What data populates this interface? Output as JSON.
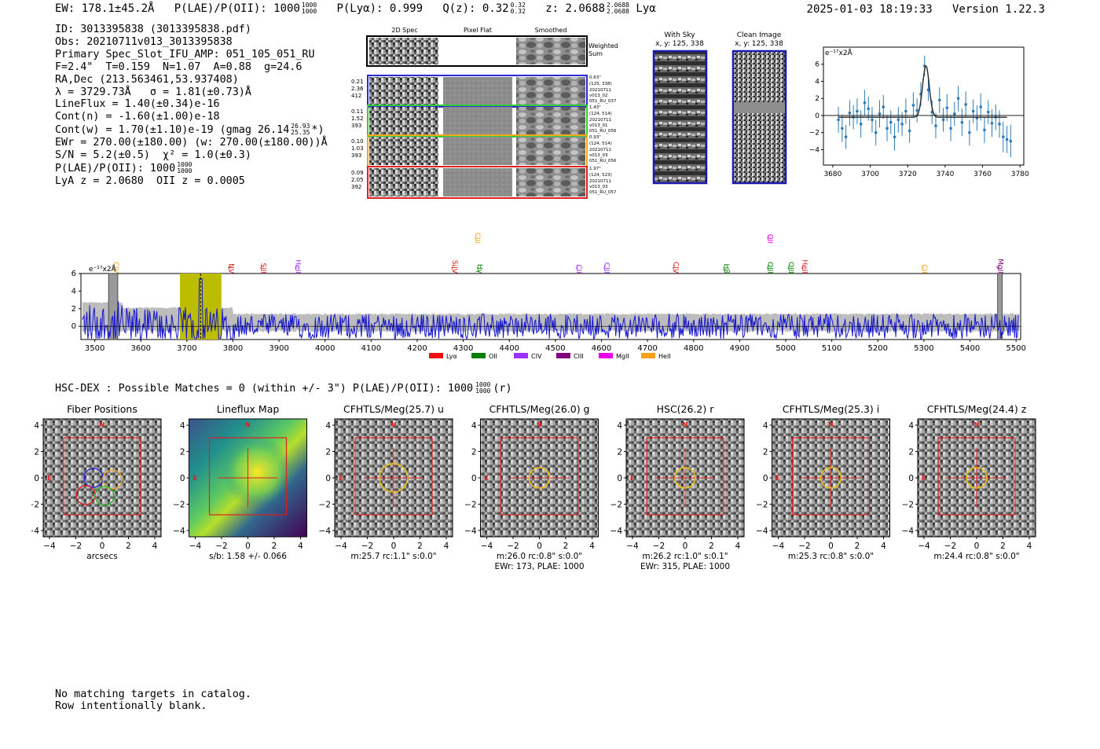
{
  "header": {
    "ew": "EW: 178.1±45.2Å",
    "plae": "P(LAE)/P(OII): 1000",
    "plae_sup": "1000",
    "plae_sub": "1000",
    "plya": "P(Lyα): 0.999",
    "qz": "Q(z): 0.32",
    "qz_sup": "0.32",
    "qz_sub": "0.32",
    "z": "z: 2.0688",
    "z_sup": "2.0688",
    "z_sub": "2.0688",
    "line_name": "Lyα",
    "timestamp": "2025-01-03 18:19:33",
    "version": "Version 1.22.3"
  },
  "info": {
    "id": "ID: 3013395838 (3013395838.pdf)",
    "obs": "Obs: 20210711v013_3013395838",
    "primary": "Primary Spec_Slot_IFU_AMP: 051_105_051_RU",
    "fibers": "F=2.4\"  T=0.159  N=1.07  A=0.88  g=24.6",
    "radec": "RA,Dec (213.563461,53.937408)",
    "lambda": "λ = 3729.73Å   σ = 1.81(±0.73)Å",
    "lineflux": "LineFlux = 1.40(±0.34)e-16",
    "cont_n": "Cont(n) = -1.60(±1.00)e-18",
    "cont_w": "Cont(w) = 1.70(±1.10)e-19 (gmag 26.14",
    "cont_w_sup": "26.93",
    "cont_w_sub": "25.35",
    "cont_w_end": "*)",
    "ewr": "EWr = 270.00(±180.00) (w: 270.00(±180.00))Å",
    "sn": "S/N = 5.2(±0.5)  χ² = 1.0(±0.3)",
    "plae": "P(LAE)/P(OII): 1000",
    "plae_sup": "1000",
    "plae_sub": "1000",
    "lya": "LyA z = 2.0680  OII z = 0.0005"
  },
  "cutouts": {
    "col_headers": [
      "2D Spec",
      "Pixel Flat",
      "Smoothed"
    ],
    "weighted_sum": [
      "Weighted",
      "Sum"
    ],
    "rows": [
      {
        "left": [
          "0.21",
          "2.36",
          "412"
        ],
        "right": [
          "0.63\"",
          "(125, 338)",
          "20210711",
          "v013_02",
          "051_RU_037"
        ],
        "color": "#2a2ad8"
      },
      {
        "left": [
          "0.11",
          "1.52",
          "393"
        ],
        "right": [
          "1.43\"",
          "(124, 514)",
          "20210711",
          "v013_01",
          "051_RU_056"
        ],
        "color": "#33cc33"
      },
      {
        "left": [
          "0.10",
          "1.03",
          "393"
        ],
        "right": [
          "0.93\"",
          "(124, 514)",
          "20210711",
          "v013_03",
          "051_RU_056"
        ],
        "color": "#f2a81d"
      },
      {
        "left": [
          "0.09",
          "2.05",
          "392"
        ],
        "right": [
          "1.97\"",
          "(124, 523)",
          "20210711",
          "v013_03",
          "051_RU_057"
        ],
        "color": "#e02020"
      }
    ]
  },
  "sky_panels": {
    "with_sky_title": "With Sky",
    "with_sky_xy": "x, y: 125, 338",
    "clean_title": "Clean Image",
    "clean_xy": "x, y: 125, 338"
  },
  "hsc_dex": {
    "text": "HSC-DEX : Possible Matches = 0 (within +/- 3\")  P(LAE)/P(OII): 1000",
    "sup": "1000",
    "sub": "1000",
    "band": "(r)"
  },
  "stamps": [
    {
      "title": "Fiber Positions",
      "caption": "arcsecs",
      "caption2": ""
    },
    {
      "title": "Lineflux Map",
      "caption": "s/b: 1.58 +/- 0.066",
      "caption2": ""
    },
    {
      "title": "CFHTLS/Meg(25.7) u",
      "caption": "m:25.7 rc:1.1\"  s:0.0\"",
      "caption2": ""
    },
    {
      "title": "CFHTLS/Meg(26.0) g",
      "caption": "m:26.0 rc:0.8\"  s:0.0\"",
      "caption2": "EWr: 173, PLAE: 1000"
    },
    {
      "title": "HSC(26.2) r",
      "caption": "m:26.2 rc:1.0\"  s:0.1\"",
      "caption2": "EWr: 315, PLAE: 1000"
    },
    {
      "title": "CFHTLS/Meg(25.3) i",
      "caption": "m:25.3 rc:0.8\"  s:0.0\"",
      "caption2": ""
    },
    {
      "title": "CFHTLS/Meg(24.4) z",
      "caption": "m:24.4 rc:0.8\"  s:0.0\"",
      "caption2": ""
    }
  ],
  "stamp_axis": {
    "ticks": [
      "−4",
      "−2",
      "0",
      "2",
      "4"
    ],
    "north": "N",
    "east": "E"
  },
  "chart_data": [
    {
      "type": "scatter",
      "title": "",
      "ylabel": "e⁻¹⁷x2Å",
      "xlabel": "",
      "xlim": [
        3675,
        3782
      ],
      "ylim": [
        -5.8,
        8
      ],
      "x_ticks": [
        3680,
        3700,
        3720,
        3740,
        3760,
        3780
      ],
      "y_ticks": [
        -4,
        -2,
        0,
        2,
        4,
        6
      ],
      "points": [
        [
          3683,
          -0.5,
          1.5
        ],
        [
          3685,
          -1.5,
          1.6
        ],
        [
          3687,
          -2.5,
          1.4
        ],
        [
          3689,
          0.3,
          1.5
        ],
        [
          3691,
          -0.2,
          1.4
        ],
        [
          3693,
          0.5,
          1.5
        ],
        [
          3695,
          -1.0,
          1.6
        ],
        [
          3697,
          1.5,
          1.5
        ],
        [
          3699,
          0.8,
          1.4
        ],
        [
          3701,
          -0.5,
          1.5
        ],
        [
          3703,
          -2.0,
          1.5
        ],
        [
          3705,
          0.2,
          1.6
        ],
        [
          3707,
          1.0,
          1.4
        ],
        [
          3709,
          -1.5,
          1.5
        ],
        [
          3711,
          -0.8,
          1.4
        ],
        [
          3713,
          -2.5,
          1.6
        ],
        [
          3715,
          -0.5,
          1.5
        ],
        [
          3717,
          -1.0,
          1.4
        ],
        [
          3719,
          0.5,
          1.5
        ],
        [
          3721,
          -1.8,
          1.4
        ],
        [
          3723,
          1.2,
          1.5
        ],
        [
          3725,
          0.6,
          1.4
        ],
        [
          3727,
          2.5,
          1.4
        ],
        [
          3729,
          5.8,
          1.2
        ],
        [
          3731,
          3.0,
          1.3
        ],
        [
          3733,
          0.4,
          1.4
        ],
        [
          3735,
          -1.2,
          1.5
        ],
        [
          3737,
          1.8,
          1.5
        ],
        [
          3739,
          -0.5,
          1.4
        ],
        [
          3741,
          0.9,
          1.6
        ],
        [
          3743,
          -1.5,
          1.5
        ],
        [
          3745,
          0.2,
          1.4
        ],
        [
          3747,
          2.0,
          1.5
        ],
        [
          3749,
          -0.8,
          1.6
        ],
        [
          3751,
          1.3,
          1.5
        ],
        [
          3753,
          -2.0,
          1.5
        ],
        [
          3755,
          0.5,
          1.4
        ],
        [
          3757,
          -0.3,
          1.5
        ],
        [
          3759,
          1.0,
          1.6
        ],
        [
          3761,
          -1.7,
          1.5
        ],
        [
          3763,
          0.4,
          1.4
        ],
        [
          3765,
          -0.9,
          1.6
        ],
        [
          3767,
          -0.2,
          1.5
        ],
        [
          3769,
          -1.0,
          1.6
        ],
        [
          3771,
          -2.5,
          1.8
        ],
        [
          3773,
          -2.8,
          1.6
        ],
        [
          3775,
          -3.0,
          1.9
        ]
      ],
      "fit": {
        "continuum": -0.2,
        "amp": 6.0,
        "center": 3729.73,
        "sigma": 1.81,
        "x_start": 3683,
        "x_end": 3773
      }
    },
    {
      "type": "line",
      "title": "",
      "ylabel": "e⁻¹⁷x2Å",
      "xlabel": "",
      "xlim": [
        3470,
        5510
      ],
      "ylim": [
        -1.5,
        6
      ],
      "x_ticks": [
        3500,
        3600,
        3700,
        3800,
        3900,
        4000,
        4100,
        4200,
        4300,
        4400,
        4500,
        4600,
        4700,
        4800,
        4900,
        5000,
        5100,
        5200,
        5300,
        5400,
        5500
      ],
      "y_ticks": [
        0,
        2,
        4,
        6
      ],
      "highlight_band": [
        3685,
        3775
      ],
      "detection_line": 3729.73,
      "masked_regions": [
        [
          3530,
          3550
        ],
        [
          5460,
          5470
        ]
      ],
      "line_markers": [
        {
          "name": "CIV",
          "x": 3545,
          "color": "#f2a81d",
          "level": 1
        },
        {
          "name": "NV",
          "x": 3795,
          "color": "#e02020",
          "level": 1
        },
        {
          "name": "SiII",
          "x": 3865,
          "color": "#e02020",
          "level": 1
        },
        {
          "name": "HeII",
          "x": 3940,
          "color": "#9b30ff",
          "level": 1
        },
        {
          "name": "SiIV",
          "x": 4280,
          "color": "#e02020",
          "level": 1
        },
        {
          "name": "CIII",
          "x": 4330,
          "color": "#f2a81d",
          "level": 2
        },
        {
          "name": "Hγ",
          "x": 4335,
          "color": "#008000",
          "level": 1
        },
        {
          "name": "CII",
          "x": 4550,
          "color": "#9b30ff",
          "level": 1
        },
        {
          "name": "CIII",
          "x": 4610,
          "color": "#9b30ff",
          "level": 1
        },
        {
          "name": "CIV",
          "x": 4760,
          "color": "#e02020",
          "level": 1
        },
        {
          "name": "Hβ",
          "x": 4870,
          "color": "#008000",
          "level": 1
        },
        {
          "name": "OII",
          "x": 4965,
          "color": "#ee00ee",
          "level": 2
        },
        {
          "name": "OIII",
          "x": 4965,
          "color": "#008000",
          "level": 1
        },
        {
          "name": "OIII",
          "x": 5010,
          "color": "#008000",
          "level": 1
        },
        {
          "name": "HeII",
          "x": 5040,
          "color": "#e02020",
          "level": 1
        },
        {
          "name": "CII",
          "x": 5300,
          "color": "#f2a81d",
          "level": 1
        },
        {
          "name": "MgII",
          "x": 5465,
          "color": "#800080",
          "level": 1
        }
      ],
      "legend": [
        {
          "name": "Lyα",
          "color": "#ee1111"
        },
        {
          "name": "OII",
          "color": "#008000"
        },
        {
          "name": "CIV",
          "color": "#9b30ff"
        },
        {
          "name": "CIII",
          "color": "#800080"
        },
        {
          "name": "MgII",
          "color": "#ee00ee"
        },
        {
          "name": "HeII",
          "color": "#f5a21a"
        }
      ]
    }
  ]
}
